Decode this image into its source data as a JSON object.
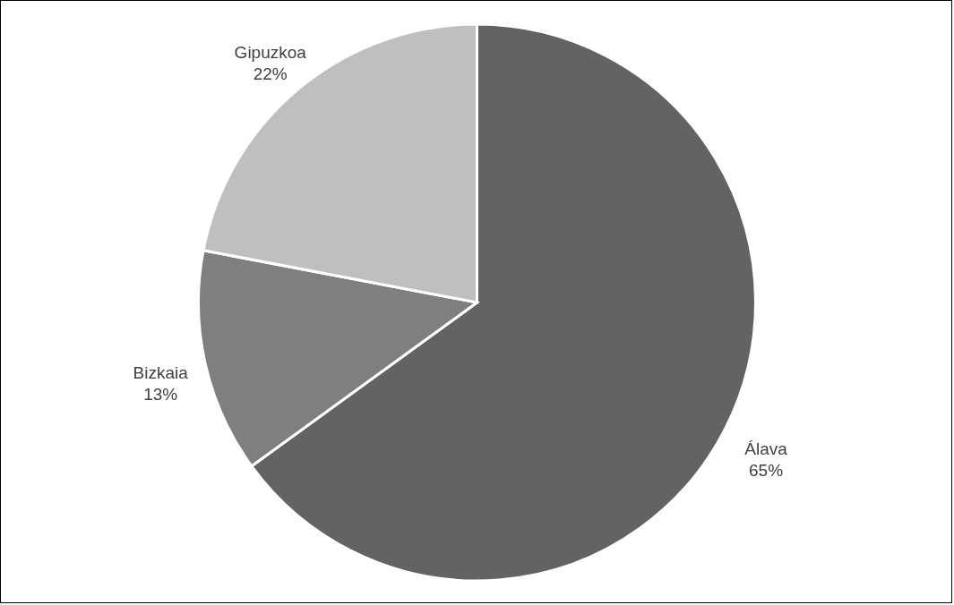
{
  "chart_data": {
    "type": "pie",
    "categories": [
      "Álava",
      "Bizkaia",
      "Gipuzkoa"
    ],
    "values": [
      65,
      13,
      22
    ],
    "colors": [
      "#636363",
      "#7f7f7f",
      "#bfbfbf"
    ],
    "value_labels": [
      "65%",
      "13%",
      "22%"
    ]
  }
}
